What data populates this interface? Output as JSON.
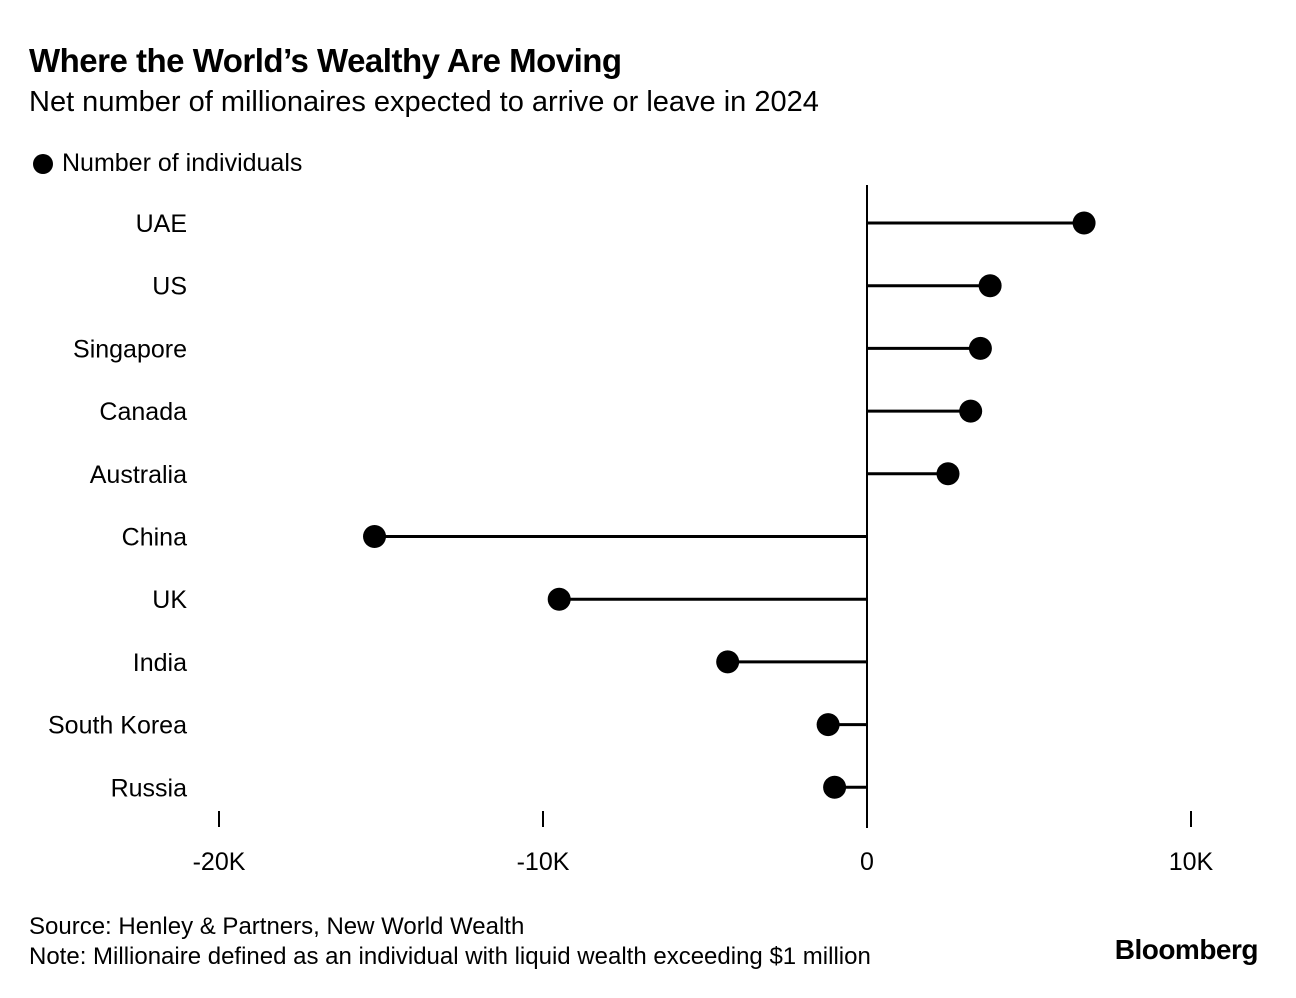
{
  "chart_data": {
    "type": "lollipop",
    "title": "Where the World’s Wealthy Are Moving",
    "subtitle": "Net number of millionaires expected to arrive or leave in 2024",
    "legend": [
      {
        "name": "Number of individuals",
        "color": "#000000"
      }
    ],
    "categories": [
      "UAE",
      "US",
      "Singapore",
      "Canada",
      "Australia",
      "China",
      "UK",
      "India",
      "South Korea",
      "Russia"
    ],
    "values": [
      6700,
      3800,
      3500,
      3200,
      2500,
      -15200,
      -9500,
      -4300,
      -1200,
      -1000
    ],
    "xlim": [
      -20000,
      12000
    ],
    "xticks": [
      -20000,
      -10000,
      0,
      10000
    ],
    "xtick_labels": [
      "-20K",
      "-10K",
      "0",
      "10K"
    ],
    "xlabel": "",
    "ylabel": "",
    "grid": false
  },
  "footer": {
    "source": "Source: Henley & Partners, New World Wealth",
    "note": "Note: Millionaire defined as an individual with liquid wealth exceeding $1 million",
    "brand": "Bloomberg"
  }
}
